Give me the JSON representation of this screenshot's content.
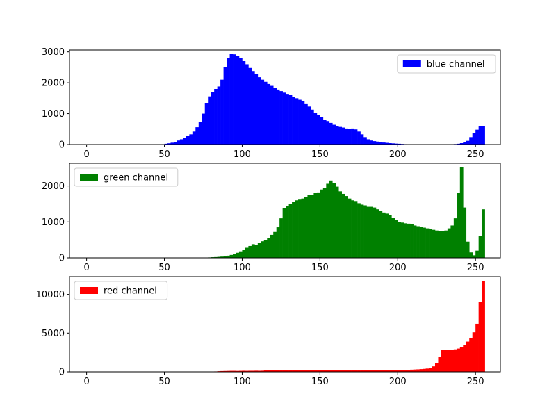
{
  "chart_data": [
    {
      "type": "bar",
      "subtype": "histogram",
      "series": [
        {
          "name": "blue channel",
          "color": "#0000ff"
        }
      ],
      "x": {
        "range": [
          -11,
          266
        ],
        "ticks": [
          0,
          50,
          100,
          150,
          200,
          250
        ],
        "tick_labels": [
          "0",
          "50",
          "100",
          "150",
          "200",
          "250"
        ]
      },
      "y": {
        "range": [
          0,
          3060
        ],
        "ticks": [
          0,
          1000,
          2000,
          3000
        ],
        "tick_labels": [
          "0",
          "1000",
          "2000",
          "3000"
        ]
      },
      "legend": {
        "position": "top-right"
      },
      "bins": [
        [
          48,
          10
        ],
        [
          50,
          25
        ],
        [
          52,
          40
        ],
        [
          54,
          60
        ],
        [
          56,
          90
        ],
        [
          58,
          130
        ],
        [
          60,
          170
        ],
        [
          62,
          220
        ],
        [
          64,
          270
        ],
        [
          66,
          330
        ],
        [
          68,
          420
        ],
        [
          70,
          560
        ],
        [
          72,
          720
        ],
        [
          74,
          1000
        ],
        [
          76,
          1350
        ],
        [
          78,
          1560
        ],
        [
          80,
          1700
        ],
        [
          82,
          1800
        ],
        [
          84,
          1880
        ],
        [
          86,
          2100
        ],
        [
          88,
          2500
        ],
        [
          90,
          2800
        ],
        [
          92,
          2940
        ],
        [
          94,
          2920
        ],
        [
          96,
          2880
        ],
        [
          98,
          2800
        ],
        [
          100,
          2700
        ],
        [
          102,
          2600
        ],
        [
          104,
          2480
        ],
        [
          106,
          2380
        ],
        [
          108,
          2280
        ],
        [
          110,
          2180
        ],
        [
          112,
          2100
        ],
        [
          114,
          2030
        ],
        [
          116,
          1960
        ],
        [
          118,
          1900
        ],
        [
          120,
          1840
        ],
        [
          122,
          1780
        ],
        [
          124,
          1730
        ],
        [
          126,
          1680
        ],
        [
          128,
          1640
        ],
        [
          130,
          1600
        ],
        [
          132,
          1550
        ],
        [
          134,
          1500
        ],
        [
          136,
          1450
        ],
        [
          138,
          1400
        ],
        [
          140,
          1330
        ],
        [
          142,
          1230
        ],
        [
          144,
          1130
        ],
        [
          146,
          1030
        ],
        [
          148,
          950
        ],
        [
          150,
          880
        ],
        [
          152,
          810
        ],
        [
          154,
          760
        ],
        [
          156,
          700
        ],
        [
          158,
          640
        ],
        [
          160,
          600
        ],
        [
          162,
          570
        ],
        [
          164,
          550
        ],
        [
          166,
          520
        ],
        [
          168,
          500
        ],
        [
          170,
          520
        ],
        [
          172,
          490
        ],
        [
          174,
          420
        ],
        [
          176,
          330
        ],
        [
          178,
          240
        ],
        [
          180,
          170
        ],
        [
          182,
          130
        ],
        [
          184,
          110
        ],
        [
          186,
          95
        ],
        [
          188,
          80
        ],
        [
          190,
          65
        ],
        [
          192,
          55
        ],
        [
          194,
          45
        ],
        [
          196,
          38
        ],
        [
          198,
          30
        ],
        [
          200,
          25
        ],
        [
          202,
          18
        ],
        [
          204,
          12
        ],
        [
          206,
          8
        ],
        [
          208,
          5
        ],
        [
          220,
          5
        ],
        [
          232,
          8
        ],
        [
          236,
          15
        ],
        [
          238,
          25
        ],
        [
          240,
          45
        ],
        [
          242,
          70
        ],
        [
          244,
          120
        ],
        [
          246,
          240
        ],
        [
          248,
          360
        ],
        [
          250,
          480
        ],
        [
          252,
          590
        ],
        [
          254,
          600
        ]
      ]
    },
    {
      "type": "bar",
      "subtype": "histogram",
      "series": [
        {
          "name": "green channel",
          "color": "#008000"
        }
      ],
      "x": {
        "range": [
          -11,
          266
        ],
        "ticks": [
          0,
          50,
          100,
          150,
          200,
          250
        ],
        "tick_labels": [
          "0",
          "50",
          "100",
          "150",
          "200",
          "250"
        ]
      },
      "y": {
        "range": [
          0,
          2630
        ],
        "ticks": [
          0,
          1000,
          2000
        ],
        "tick_labels": [
          "0",
          "1000",
          "2000"
        ]
      },
      "legend": {
        "position": "top-left"
      },
      "bins": [
        [
          76,
          8
        ],
        [
          78,
          12
        ],
        [
          80,
          18
        ],
        [
          82,
          22
        ],
        [
          84,
          28
        ],
        [
          86,
          35
        ],
        [
          88,
          45
        ],
        [
          90,
          60
        ],
        [
          92,
          80
        ],
        [
          94,
          110
        ],
        [
          96,
          140
        ],
        [
          98,
          180
        ],
        [
          100,
          230
        ],
        [
          102,
          280
        ],
        [
          104,
          330
        ],
        [
          106,
          380
        ],
        [
          108,
          350
        ],
        [
          110,
          420
        ],
        [
          112,
          460
        ],
        [
          114,
          500
        ],
        [
          116,
          560
        ],
        [
          118,
          640
        ],
        [
          120,
          720
        ],
        [
          122,
          850
        ],
        [
          124,
          1100
        ],
        [
          126,
          1380
        ],
        [
          128,
          1450
        ],
        [
          130,
          1500
        ],
        [
          132,
          1560
        ],
        [
          134,
          1600
        ],
        [
          136,
          1620
        ],
        [
          138,
          1650
        ],
        [
          140,
          1700
        ],
        [
          142,
          1750
        ],
        [
          144,
          1760
        ],
        [
          146,
          1800
        ],
        [
          148,
          1820
        ],
        [
          150,
          1900
        ],
        [
          152,
          1950
        ],
        [
          154,
          2060
        ],
        [
          156,
          2150
        ],
        [
          158,
          2080
        ],
        [
          160,
          1980
        ],
        [
          162,
          1850
        ],
        [
          164,
          1780
        ],
        [
          166,
          1720
        ],
        [
          168,
          1650
        ],
        [
          170,
          1600
        ],
        [
          172,
          1580
        ],
        [
          174,
          1520
        ],
        [
          176,
          1480
        ],
        [
          178,
          1460
        ],
        [
          180,
          1420
        ],
        [
          182,
          1420
        ],
        [
          184,
          1400
        ],
        [
          186,
          1350
        ],
        [
          188,
          1300
        ],
        [
          190,
          1260
        ],
        [
          192,
          1230
        ],
        [
          194,
          1180
        ],
        [
          196,
          1120
        ],
        [
          198,
          1050
        ],
        [
          200,
          1000
        ],
        [
          202,
          980
        ],
        [
          204,
          960
        ],
        [
          206,
          950
        ],
        [
          208,
          930
        ],
        [
          210,
          900
        ],
        [
          212,
          880
        ],
        [
          214,
          860
        ],
        [
          216,
          840
        ],
        [
          218,
          820
        ],
        [
          220,
          800
        ],
        [
          222,
          780
        ],
        [
          224,
          760
        ],
        [
          226,
          750
        ],
        [
          228,
          740
        ],
        [
          230,
          760
        ],
        [
          232,
          820
        ],
        [
          234,
          900
        ],
        [
          236,
          1100
        ],
        [
          238,
          1800
        ],
        [
          240,
          2520
        ],
        [
          242,
          1400
        ],
        [
          244,
          450
        ],
        [
          246,
          150
        ],
        [
          248,
          70
        ],
        [
          250,
          200
        ],
        [
          252,
          600
        ],
        [
          254,
          1350
        ]
      ]
    },
    {
      "type": "bar",
      "subtype": "histogram",
      "series": [
        {
          "name": "red channel",
          "color": "#ff0000"
        }
      ],
      "x": {
        "range": [
          -11,
          266
        ],
        "ticks": [
          0,
          50,
          100,
          150,
          200,
          250
        ],
        "tick_labels": [
          "0",
          "50",
          "100",
          "150",
          "200",
          "250"
        ]
      },
      "y": {
        "range": [
          0,
          12300
        ],
        "ticks": [
          0,
          5000,
          10000
        ],
        "tick_labels": [
          "0",
          "5000",
          "10000"
        ]
      },
      "legend": {
        "position": "top-left"
      },
      "bins": [
        [
          82,
          50
        ],
        [
          84,
          80
        ],
        [
          86,
          100
        ],
        [
          88,
          110
        ],
        [
          90,
          120
        ],
        [
          92,
          130
        ],
        [
          94,
          130
        ],
        [
          96,
          120
        ],
        [
          98,
          130
        ],
        [
          100,
          140
        ],
        [
          102,
          130
        ],
        [
          104,
          140
        ],
        [
          106,
          140
        ],
        [
          108,
          150
        ],
        [
          110,
          140
        ],
        [
          112,
          150
        ],
        [
          114,
          180
        ],
        [
          116,
          200
        ],
        [
          118,
          200
        ],
        [
          120,
          210
        ],
        [
          122,
          200
        ],
        [
          124,
          210
        ],
        [
          126,
          200
        ],
        [
          128,
          210
        ],
        [
          130,
          200
        ],
        [
          132,
          200
        ],
        [
          134,
          210
        ],
        [
          136,
          200
        ],
        [
          138,
          210
        ],
        [
          140,
          200
        ],
        [
          142,
          200
        ],
        [
          144,
          210
        ],
        [
          146,
          200
        ],
        [
          148,
          200
        ],
        [
          150,
          210
        ],
        [
          152,
          200
        ],
        [
          154,
          200
        ],
        [
          156,
          210
        ],
        [
          158,
          200
        ],
        [
          160,
          200
        ],
        [
          162,
          210
        ],
        [
          164,
          200
        ],
        [
          166,
          200
        ],
        [
          168,
          180
        ],
        [
          170,
          190
        ],
        [
          172,
          190
        ],
        [
          174,
          190
        ],
        [
          176,
          190
        ],
        [
          178,
          190
        ],
        [
          180,
          190
        ],
        [
          182,
          190
        ],
        [
          184,
          190
        ],
        [
          186,
          190
        ],
        [
          188,
          190
        ],
        [
          190,
          190
        ],
        [
          192,
          190
        ],
        [
          194,
          190
        ],
        [
          196,
          190
        ],
        [
          198,
          190
        ],
        [
          200,
          200
        ],
        [
          202,
          220
        ],
        [
          204,
          240
        ],
        [
          206,
          260
        ],
        [
          208,
          280
        ],
        [
          210,
          300
        ],
        [
          212,
          320
        ],
        [
          214,
          350
        ],
        [
          216,
          380
        ],
        [
          218,
          420
        ],
        [
          220,
          500
        ],
        [
          222,
          700
        ],
        [
          224,
          1100
        ],
        [
          226,
          1900
        ],
        [
          228,
          2800
        ],
        [
          230,
          2850
        ],
        [
          232,
          2800
        ],
        [
          234,
          2850
        ],
        [
          236,
          2900
        ],
        [
          238,
          3000
        ],
        [
          240,
          3200
        ],
        [
          242,
          3500
        ],
        [
          244,
          3900
        ],
        [
          246,
          4400
        ],
        [
          248,
          5100
        ],
        [
          250,
          6200
        ],
        [
          252,
          9000
        ],
        [
          254,
          11700
        ]
      ]
    }
  ]
}
